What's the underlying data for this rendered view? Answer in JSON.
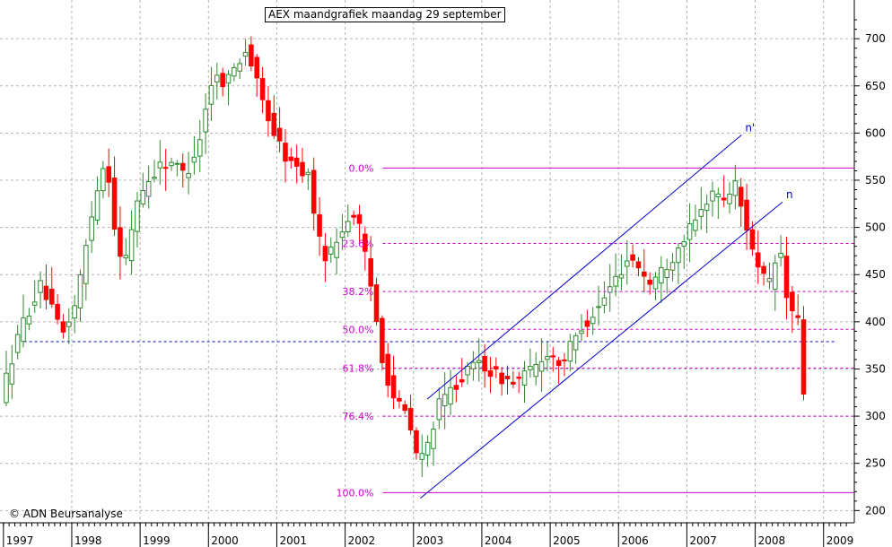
{
  "chart_data": {
    "type": "candlestick",
    "title": "AEX maandgrafiek maandag 29 september",
    "credit": "© ADN Beursanalyse",
    "y_ticks": [
      200,
      250,
      300,
      350,
      400,
      450,
      500,
      550,
      600,
      650,
      700
    ],
    "ylim": [
      187,
      741
    ],
    "x_ticks": [
      "1997",
      "1998",
      "1999",
      "2000",
      "2001",
      "2002",
      "2003",
      "2004",
      "2005",
      "2006",
      "2007",
      "2008",
      "2009"
    ],
    "xlim": [
      1996.95,
      2009.45
    ],
    "grid": true,
    "colors": {
      "up_candle": "#2e8b2e",
      "down_candle": "#ff0000",
      "fibonacci": "#cc00cc",
      "channel": "#0000cc",
      "support": "#0000cc",
      "grid": "#b4b4b4"
    },
    "fibonacci_levels": [
      {
        "label": "0.0%",
        "value": 563
      },
      {
        "label": "23.6%",
        "value": 483
      },
      {
        "label": "38.2%",
        "value": 432
      },
      {
        "label": "50.0%",
        "value": 392
      },
      {
        "label": "61.8%",
        "value": 351
      },
      {
        "label": "76.4%",
        "value": 300
      },
      {
        "label": "100.0%",
        "value": 219
      }
    ],
    "support_level": 379,
    "channels": [
      {
        "label": "n'",
        "points": [
          [
            2003.2,
            318
          ],
          [
            2007.8,
            598
          ]
        ]
      },
      {
        "label": "n",
        "points": [
          [
            2003.1,
            213
          ],
          [
            2008.4,
            527
          ]
        ]
      }
    ],
    "anchors": [
      [
        1997.0,
        320
      ],
      [
        1997.3,
        395
      ],
      [
        1997.6,
        440
      ],
      [
        1997.9,
        385
      ],
      [
        1998.1,
        420
      ],
      [
        1998.4,
        540
      ],
      [
        1998.55,
        575
      ],
      [
        1998.7,
        480
      ],
      [
        1998.8,
        455
      ],
      [
        1999.0,
        530
      ],
      [
        1999.3,
        565
      ],
      [
        1999.5,
        570
      ],
      [
        1999.7,
        555
      ],
      [
        1999.9,
        590
      ],
      [
        2000.1,
        660
      ],
      [
        2000.3,
        655
      ],
      [
        2000.6,
        690
      ],
      [
        2000.8,
        640
      ],
      [
        2001.0,
        600
      ],
      [
        2001.2,
        570
      ],
      [
        2001.5,
        555
      ],
      [
        2001.7,
        470
      ],
      [
        2001.85,
        475
      ],
      [
        2002.0,
        500
      ],
      [
        2002.2,
        518
      ],
      [
        2002.45,
        425
      ],
      [
        2002.6,
        355
      ],
      [
        2002.75,
        320
      ],
      [
        2002.95,
        300
      ],
      [
        2003.1,
        255
      ],
      [
        2003.2,
        258
      ],
      [
        2003.4,
        310
      ],
      [
        2003.7,
        338
      ],
      [
        2004.0,
        358
      ],
      [
        2004.2,
        345
      ],
      [
        2004.5,
        335
      ],
      [
        2004.8,
        350
      ],
      [
        2005.0,
        368
      ],
      [
        2005.2,
        355
      ],
      [
        2005.5,
        395
      ],
      [
        2005.75,
        415
      ],
      [
        2005.95,
        440
      ],
      [
        2006.2,
        470
      ],
      [
        2006.35,
        458
      ],
      [
        2006.5,
        440
      ],
      [
        2006.8,
        465
      ],
      [
        2007.0,
        490
      ],
      [
        2007.2,
        508
      ],
      [
        2007.4,
        540
      ],
      [
        2007.55,
        528
      ],
      [
        2007.75,
        545
      ],
      [
        2007.85,
        518
      ],
      [
        2008.0,
        480
      ],
      [
        2008.1,
        450
      ],
      [
        2008.25,
        440
      ],
      [
        2008.4,
        480
      ],
      [
        2008.5,
        425
      ],
      [
        2008.6,
        408
      ],
      [
        2008.7,
        395
      ],
      [
        2008.75,
        325
      ]
    ]
  }
}
